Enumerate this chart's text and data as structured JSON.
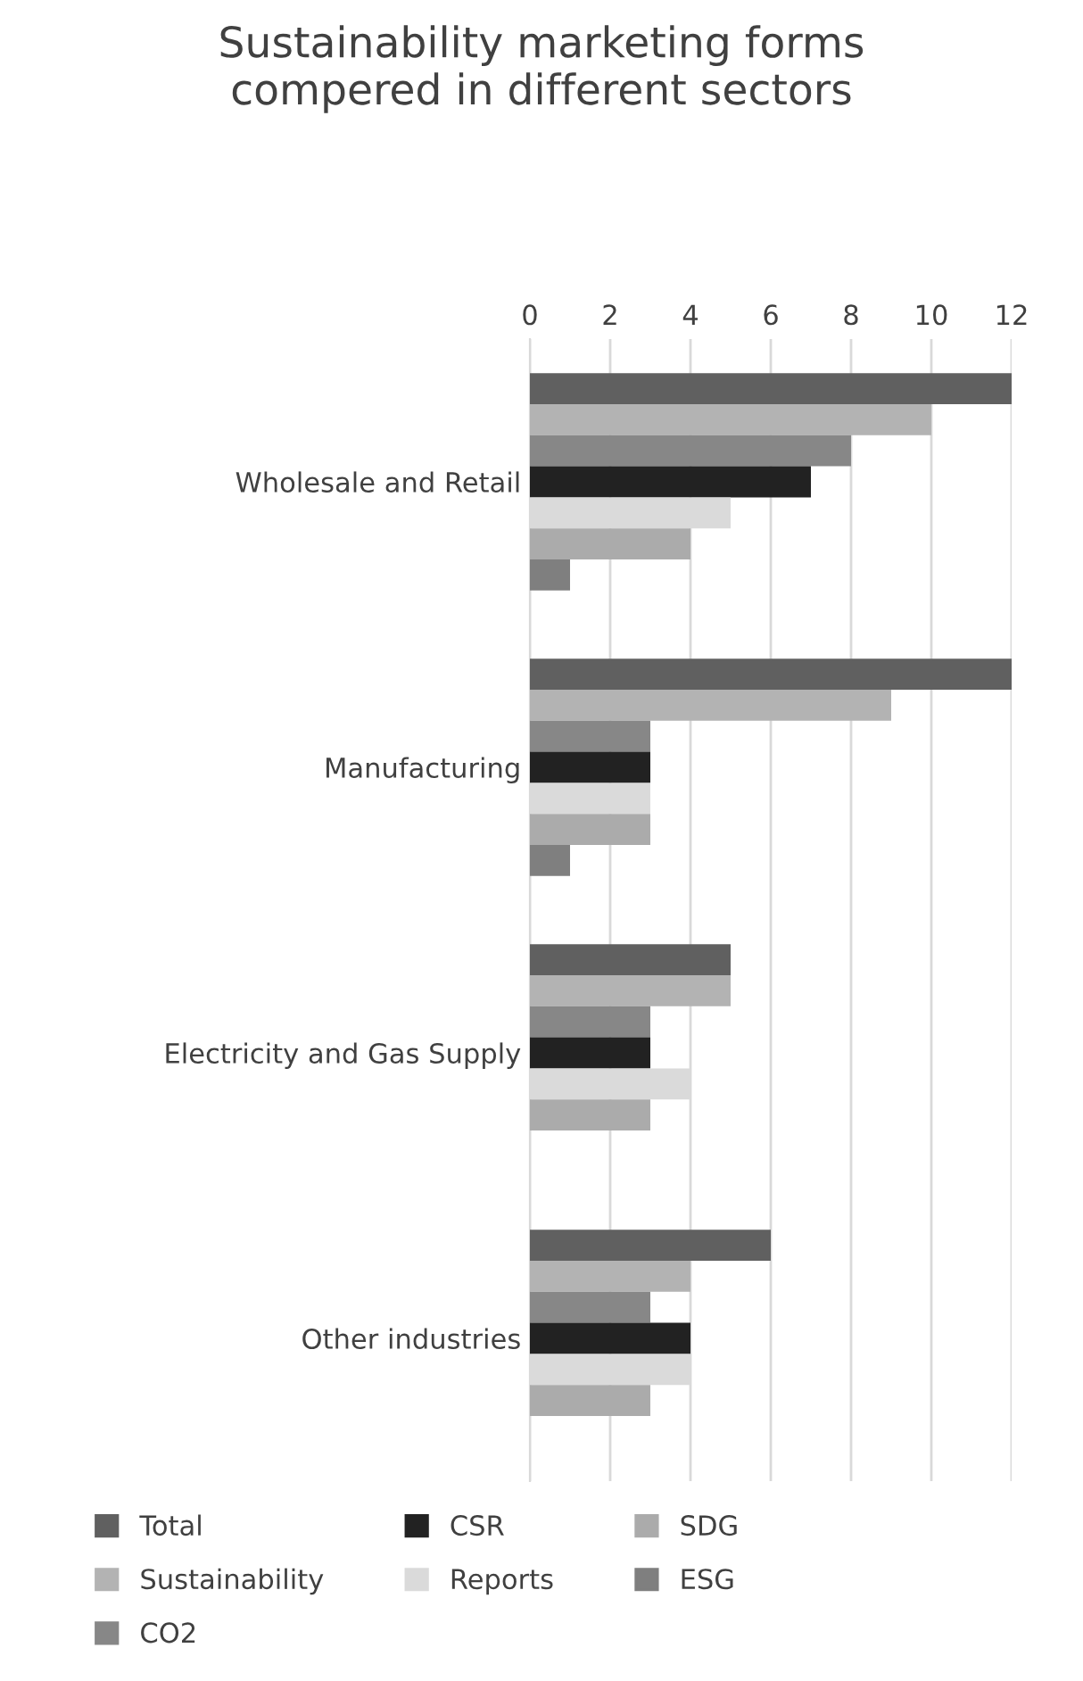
{
  "chart_data": {
    "type": "bar",
    "orientation": "horizontal",
    "title": "Sustainability marketing forms\ncompered in different sectors",
    "categories": [
      "Wholesale and Retail",
      "Manufacturing",
      "Electricity and Gas Supply",
      "Other industries"
    ],
    "series": [
      {
        "name": "Total",
        "color": "#606060",
        "values": [
          12,
          12,
          5,
          6
        ]
      },
      {
        "name": "Sustainability",
        "color": "#b3b3b3",
        "values": [
          10,
          9,
          5,
          4
        ]
      },
      {
        "name": "CO2",
        "color": "#878787",
        "values": [
          8,
          3,
          3,
          3
        ]
      },
      {
        "name": "CSR",
        "color": "#222222",
        "values": [
          7,
          3,
          3,
          4
        ]
      },
      {
        "name": "Reports",
        "color": "#dadada",
        "values": [
          5,
          3,
          4,
          4
        ]
      },
      {
        "name": "SDG",
        "color": "#ababab",
        "values": [
          4,
          3,
          3,
          3
        ]
      },
      {
        "name": "ESG",
        "color": "#7f7f7f",
        "values": [
          1,
          1,
          0,
          0
        ]
      }
    ],
    "xlim": [
      0,
      12
    ],
    "xticks": [
      0,
      2,
      4,
      6,
      8,
      10,
      12
    ],
    "grid": "x",
    "legend": "bottom"
  }
}
